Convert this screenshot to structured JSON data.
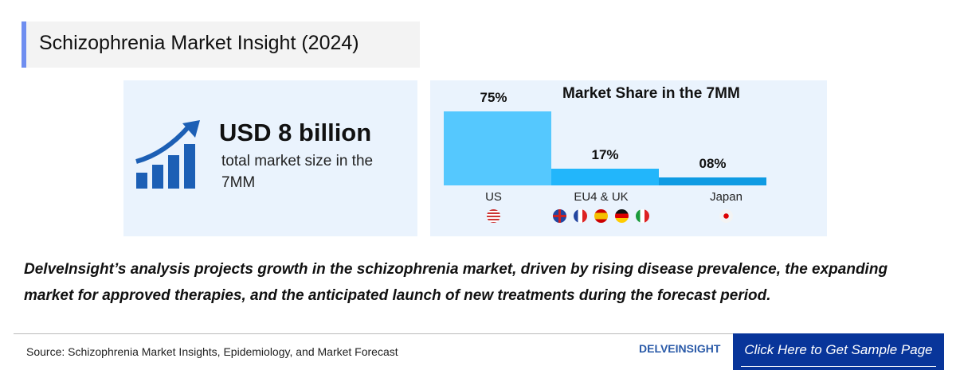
{
  "title": "Schizophrenia Market Insight (2024)",
  "market_size": {
    "value": "USD 8 billion",
    "caption": "total market size in the 7MM",
    "icon": "growth-chart-icon"
  },
  "chart_data": {
    "type": "bar",
    "title": "Market Share in the 7MM",
    "categories": [
      "US",
      "EU4 & UK",
      "Japan"
    ],
    "values": [
      75,
      17,
      8
    ],
    "data_labels": [
      "75%",
      "17%",
      "08%"
    ],
    "colors": [
      "#55c8fe",
      "#22b6fb",
      "#0f9be3"
    ],
    "flags": [
      [
        "us"
      ],
      [
        "uk",
        "france",
        "spain",
        "germany",
        "italy"
      ],
      [
        "japan"
      ]
    ],
    "ylim": [
      0,
      75
    ],
    "grid": false
  },
  "description": "DelveInsight’s analysis projects growth in the schizophrenia market, driven by rising disease prevalence, the expanding market for approved therapies, and the anticipated launch of new treatments during the forecast period.",
  "footer": {
    "source": "Source: Schizophrenia  Market Insights, Epidemiology, and Market Forecast",
    "logo": "DELVEINSIGHT",
    "cta": "Click Here to Get Sample Page"
  }
}
